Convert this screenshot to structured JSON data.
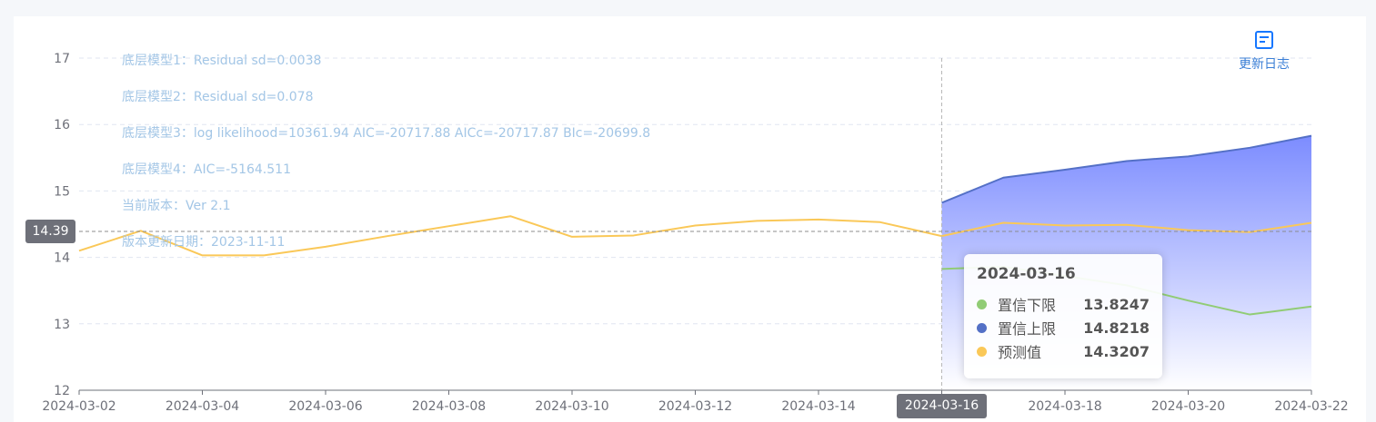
{
  "notes": [
    "底层模型1：Residual sd=0.0038",
    "底层模型2：Residual sd=0.078",
    "底层模型3：log likelihood=10361.94 AIC=-20717.88 AICc=-20717.87 BIc=-20699.8",
    "底层模型4：AIC=-5164.511",
    "当前版本：Ver 2.1",
    "版本更新日期：2023-11-11"
  ],
  "changelog": {
    "label": "更新日志",
    "icon": "document-icon"
  },
  "crosshair": {
    "y_label": "14.39",
    "x_label": "2024-03-16"
  },
  "tooltip": {
    "title": "2024-03-16",
    "rows": [
      {
        "name": "置信下限",
        "value": "13.8247",
        "color": "#91cc75"
      },
      {
        "name": "置信上限",
        "value": "14.8218",
        "color": "#5470c6"
      },
      {
        "name": "预测值",
        "value": "14.3207",
        "color": "#fac858"
      }
    ]
  },
  "chart_data": {
    "type": "line",
    "x": [
      "2024-03-02",
      "2024-03-03",
      "2024-03-04",
      "2024-03-05",
      "2024-03-06",
      "2024-03-07",
      "2024-03-08",
      "2024-03-09",
      "2024-03-10",
      "2024-03-11",
      "2024-03-12",
      "2024-03-13",
      "2024-03-14",
      "2024-03-15",
      "2024-03-16",
      "2024-03-17",
      "2024-03-18",
      "2024-03-19",
      "2024-03-20",
      "2024-03-21",
      "2024-03-22"
    ],
    "x_ticks": [
      "2024-03-02",
      "2024-03-04",
      "2024-03-06",
      "2024-03-08",
      "2024-03-10",
      "2024-03-12",
      "2024-03-14",
      "2024-03-16",
      "2024-03-18",
      "2024-03-20",
      "2024-03-22"
    ],
    "ylim": [
      12,
      17
    ],
    "y_ticks": [
      12,
      13,
      14,
      15,
      16,
      17
    ],
    "grid": true,
    "series": [
      {
        "name": "预测值",
        "color": "#fac858",
        "values": [
          14.1,
          14.4,
          14.03,
          14.03,
          14.16,
          14.32,
          14.47,
          14.62,
          14.31,
          14.33,
          14.48,
          14.55,
          14.57,
          14.53,
          14.3207,
          14.52,
          14.48,
          14.49,
          14.41,
          14.38,
          14.52
        ]
      },
      {
        "name": "置信上限",
        "color": "#5470c6",
        "values": [
          null,
          null,
          null,
          null,
          null,
          null,
          null,
          null,
          null,
          null,
          null,
          null,
          null,
          null,
          14.8218,
          15.2,
          15.32,
          15.45,
          15.52,
          15.65,
          15.83
        ]
      },
      {
        "name": "置信下限",
        "color": "#91cc75",
        "values": [
          null,
          null,
          null,
          null,
          null,
          null,
          null,
          null,
          null,
          null,
          null,
          null,
          null,
          null,
          13.8247,
          13.86,
          13.72,
          13.58,
          13.35,
          13.14,
          13.26
        ]
      }
    ]
  }
}
